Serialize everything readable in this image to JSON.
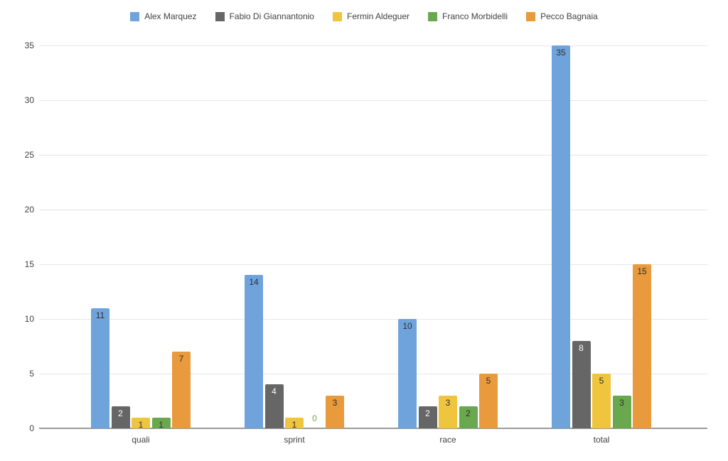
{
  "chart_data": {
    "type": "bar",
    "title": "",
    "xlabel": "",
    "ylabel": "",
    "categories": [
      "quali",
      "sprint",
      "race",
      "total"
    ],
    "series": [
      {
        "name": "Alex Marquez",
        "color": "#6FA3DC",
        "values": [
          11,
          14,
          10,
          35
        ],
        "value_label_color": "#2e2e2e"
      },
      {
        "name": "Fabio Di Giannantonio",
        "color": "#666666",
        "values": [
          2,
          4,
          2,
          8
        ],
        "value_label_color": "#ffffff"
      },
      {
        "name": "Fermin Aldeguer",
        "color": "#F0C53E",
        "values": [
          1,
          1,
          3,
          5
        ],
        "value_label_color": "#2e2e2e"
      },
      {
        "name": "Franco Morbidelli",
        "color": "#6AA84F",
        "values": [
          1,
          0,
          2,
          3
        ],
        "value_label_color": "#2e2e2e"
      },
      {
        "name": "Pecco Bagnaia",
        "color": "#E89A3C",
        "values": [
          7,
          3,
          5,
          15
        ],
        "value_label_color": "#2e2e2e"
      }
    ],
    "ylim": [
      0,
      35
    ],
    "yticks": [
      0,
      5,
      10,
      15,
      20,
      25,
      30,
      35
    ],
    "grid": true,
    "legend_position": "top",
    "value_label_style": "inside bar top; zero values rendered as text in series color above axis"
  },
  "colors": {
    "background": "#ffffff",
    "gridline": "#e6e6e6",
    "axis_line": "#9a9a9a",
    "tick_label": "#424242"
  }
}
